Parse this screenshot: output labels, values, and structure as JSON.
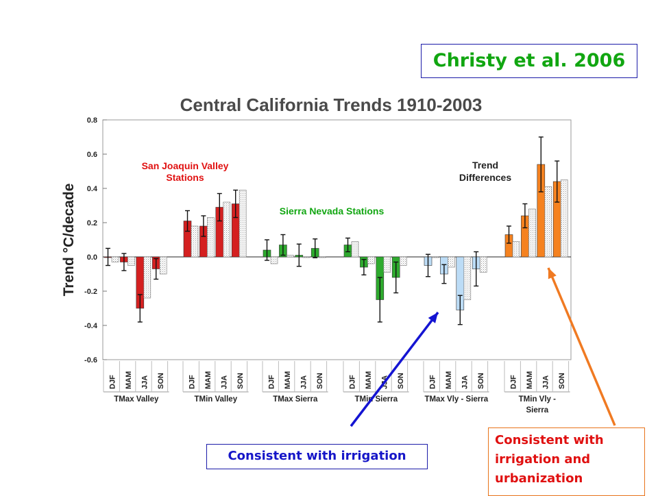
{
  "citation": "Christy et al. 2006",
  "annotations": {
    "irrigation": "Consistent with irrigation",
    "urbanization": [
      "Consistent with",
      "irrigation and",
      "urbanization"
    ]
  },
  "colors": {
    "valley": "#d42020",
    "sierra": "#2eaa2e",
    "tmax_diff": "#bcdcf6",
    "tmin_diff": "#f58220",
    "text_red": "#e01010",
    "text_green": "#11a611",
    "arrow_blue": "#1414d2",
    "arrow_orange": "#f07a22"
  },
  "chart_data": {
    "type": "bar",
    "title": "Central California Trends 1910-2003",
    "ylabel": "Trend °C/decade",
    "ylim": [
      -0.6,
      0.8
    ],
    "yticks": [
      -0.6,
      -0.4,
      -0.2,
      0.0,
      0.2,
      0.4,
      0.6,
      0.8
    ],
    "y_tick_labels": [
      "-0.6",
      "-0.4",
      "-0.2",
      "0.0",
      "0.2",
      "0.4",
      "0.6",
      "0.8"
    ],
    "grid": false,
    "annotations": {
      "valley_label": [
        "San Joaquin Valley",
        "Stations"
      ],
      "sierra_label": "Sierra Nevada Stations",
      "diff_label": [
        "Trend",
        "Differences"
      ]
    },
    "groups": [
      {
        "name": "TMax Valley",
        "color_key": "valley",
        "categories": [
          "DJF",
          "MAM",
          "JJA",
          "SON"
        ],
        "values": [
          0.0,
          -0.03,
          -0.3,
          -0.07
        ],
        "errors": [
          0.05,
          0.05,
          0.08,
          0.06
        ],
        "comparison": [
          -0.03,
          -0.05,
          -0.24,
          -0.1
        ]
      },
      {
        "name": "TMin Valley",
        "color_key": "valley",
        "categories": [
          "DJF",
          "MAM",
          "JJA",
          "SON"
        ],
        "values": [
          0.21,
          0.18,
          0.29,
          0.31
        ],
        "errors": [
          0.06,
          0.06,
          0.08,
          0.08
        ],
        "comparison": [
          0.18,
          0.23,
          0.32,
          0.39
        ]
      },
      {
        "name": "TMax Sierra",
        "color_key": "sierra",
        "categories": [
          "DJF",
          "MAM",
          "JJA",
          "SON"
        ],
        "values": [
          0.04,
          0.07,
          0.01,
          0.05
        ],
        "errors": [
          0.06,
          0.06,
          0.065,
          0.055
        ],
        "comparison": [
          -0.04,
          0.01,
          0.0,
          0.0
        ]
      },
      {
        "name": "TMin Sierra",
        "color_key": "sierra",
        "categories": [
          "DJF",
          "MAM",
          "JJA",
          "SON"
        ],
        "values": [
          0.07,
          -0.06,
          -0.25,
          -0.12
        ],
        "errors": [
          0.04,
          0.045,
          0.13,
          0.09
        ],
        "comparison": [
          0.09,
          -0.04,
          -0.09,
          -0.05
        ]
      },
      {
        "name": "TMax Vly - Sierra",
        "color_key": "tmax_diff",
        "categories": [
          "DJF",
          "MAM",
          "JJA",
          "SON"
        ],
        "values": [
          -0.05,
          -0.1,
          -0.31,
          -0.07
        ],
        "errors": [
          0.065,
          0.055,
          0.085,
          0.1
        ],
        "comparison": [
          0.0,
          -0.06,
          -0.25,
          -0.09
        ]
      },
      {
        "name": "TMin Vly - Sierra",
        "color_key": "tmin_diff",
        "categories": [
          "DJF",
          "MAM",
          "JJA",
          "SON"
        ],
        "values": [
          0.13,
          0.24,
          0.54,
          0.44
        ],
        "errors": [
          0.05,
          0.07,
          0.16,
          0.12
        ],
        "comparison": [
          0.09,
          0.28,
          0.41,
          0.45
        ]
      }
    ]
  }
}
